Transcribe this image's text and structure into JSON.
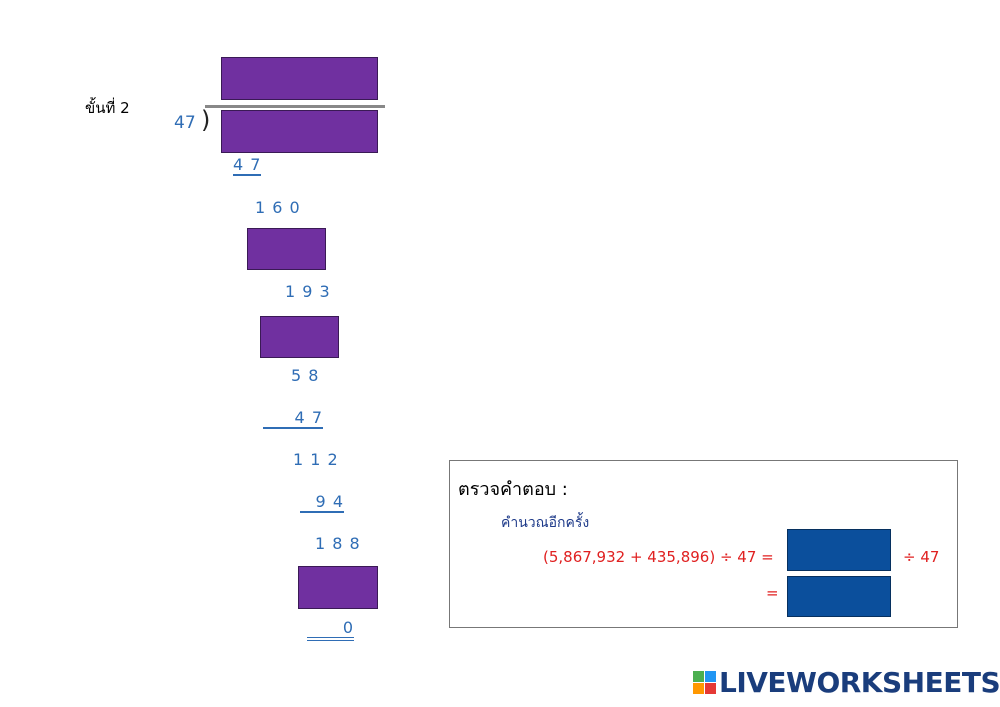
{
  "step_label": "ขั้นที่ 2",
  "divisor": "47",
  "steps": [
    "4 7",
    "1 6 0",
    "1 9 3",
    "5 8",
    "4 7",
    "1 1 2",
    "9 4",
    "1 8 8",
    "0"
  ],
  "check": {
    "title": "ตรวจคำตอบ :",
    "subtitle": "คำนวณอีกครั้ง",
    "expression": "(5,867,932 + 435,896) ÷ 47 =",
    "divide_text": "÷ 47",
    "equals": "="
  },
  "logo": "LIVEWORKSHEETS"
}
